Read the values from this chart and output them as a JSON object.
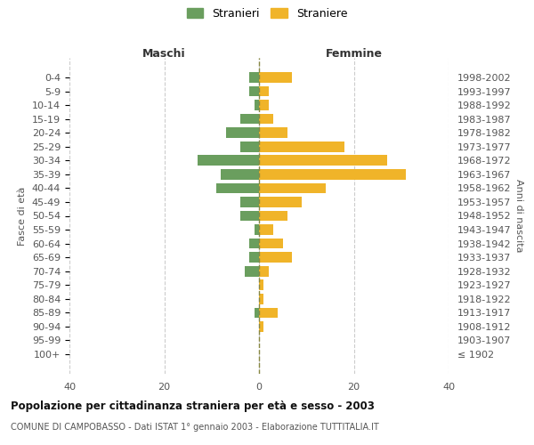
{
  "age_groups": [
    "100+",
    "95-99",
    "90-94",
    "85-89",
    "80-84",
    "75-79",
    "70-74",
    "65-69",
    "60-64",
    "55-59",
    "50-54",
    "45-49",
    "40-44",
    "35-39",
    "30-34",
    "25-29",
    "20-24",
    "15-19",
    "10-14",
    "5-9",
    "0-4"
  ],
  "birth_years": [
    "≤ 1902",
    "1903-1907",
    "1908-1912",
    "1913-1917",
    "1918-1922",
    "1923-1927",
    "1928-1932",
    "1933-1937",
    "1938-1942",
    "1943-1947",
    "1948-1952",
    "1953-1957",
    "1958-1962",
    "1963-1967",
    "1968-1972",
    "1973-1977",
    "1978-1982",
    "1983-1987",
    "1988-1992",
    "1993-1997",
    "1998-2002"
  ],
  "maschi": [
    0,
    0,
    0,
    1,
    0,
    0,
    3,
    2,
    2,
    1,
    4,
    4,
    9,
    8,
    13,
    4,
    7,
    4,
    1,
    2,
    2
  ],
  "femmine": [
    0,
    0,
    1,
    4,
    1,
    1,
    2,
    7,
    5,
    3,
    6,
    9,
    14,
    31,
    27,
    18,
    6,
    3,
    2,
    2,
    7
  ],
  "maschi_color": "#6a9e5e",
  "femmine_color": "#f0b429",
  "background_color": "#ffffff",
  "grid_color": "#cccccc",
  "title": "Popolazione per cittadinanza straniera per età e sesso - 2003",
  "subtitle": "COMUNE DI CAMPOBASSO - Dati ISTAT 1° gennaio 2003 - Elaborazione TUTTITALIA.IT",
  "ylabel_left": "Fasce di età",
  "ylabel_right": "Anni di nascita",
  "xlabel_maschi": "Maschi",
  "xlabel_femmine": "Femmine",
  "legend_maschi": "Stranieri",
  "legend_femmine": "Straniere",
  "xlim": 40
}
